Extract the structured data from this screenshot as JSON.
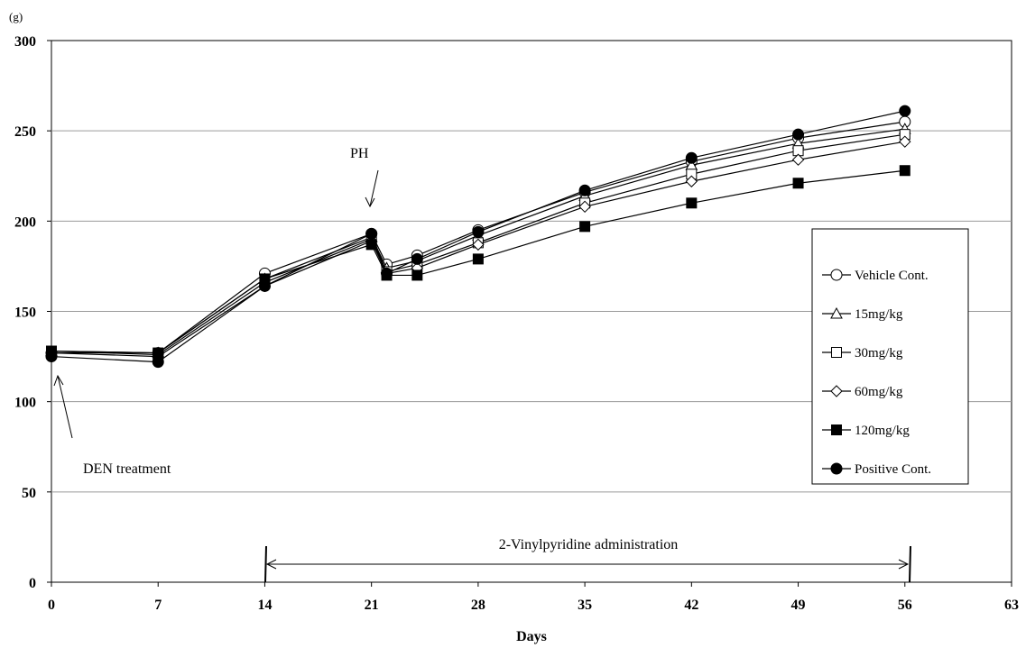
{
  "chart_data": {
    "type": "line",
    "title": "",
    "xlabel": "Days",
    "ylabel": "(g)",
    "xlim": [
      0,
      63
    ],
    "ylim": [
      0,
      300
    ],
    "xticks": [
      0,
      7,
      14,
      21,
      28,
      35,
      42,
      49,
      56,
      63
    ],
    "yticks": [
      0,
      50,
      100,
      150,
      200,
      250,
      300
    ],
    "grid": "horizontal",
    "legend_position": "right",
    "x": [
      0,
      7,
      14,
      21,
      22,
      24,
      28,
      35,
      42,
      49,
      56
    ],
    "series": [
      {
        "name": "Vehicle Cont.",
        "marker": "circle-open",
        "values": [
          127,
          127,
          171,
          193,
          176,
          181,
          195,
          216,
          233,
          246,
          255
        ]
      },
      {
        "name": "15mg/kg",
        "marker": "triangle-open",
        "values": [
          128,
          127,
          168,
          191,
          174,
          178,
          192,
          214,
          231,
          243,
          251
        ]
      },
      {
        "name": "30mg/kg",
        "marker": "square-open",
        "values": [
          128,
          126,
          166,
          190,
          172,
          176,
          188,
          210,
          226,
          239,
          248
        ]
      },
      {
        "name": "60mg/kg",
        "marker": "diamond-open",
        "values": [
          127,
          125,
          164,
          189,
          171,
          174,
          187,
          208,
          222,
          234,
          244
        ]
      },
      {
        "name": "120mg/kg",
        "marker": "square-filled",
        "values": [
          128,
          127,
          168,
          187,
          170,
          170,
          179,
          197,
          210,
          221,
          228
        ]
      },
      {
        "name": "Positive Cont.",
        "marker": "circle-filled",
        "values": [
          125,
          122,
          164,
          193,
          171,
          179,
          194,
          217,
          235,
          248,
          261
        ]
      }
    ],
    "annotations": {
      "den": {
        "text": "DEN treatment",
        "x": 0.5,
        "y": 127
      },
      "ph": {
        "text": "PH",
        "x": 21,
        "y": 205
      },
      "admin": {
        "text": "2-Vinylpyridine administration",
        "x_start": 14,
        "x_end": 56,
        "y": 10
      }
    }
  }
}
